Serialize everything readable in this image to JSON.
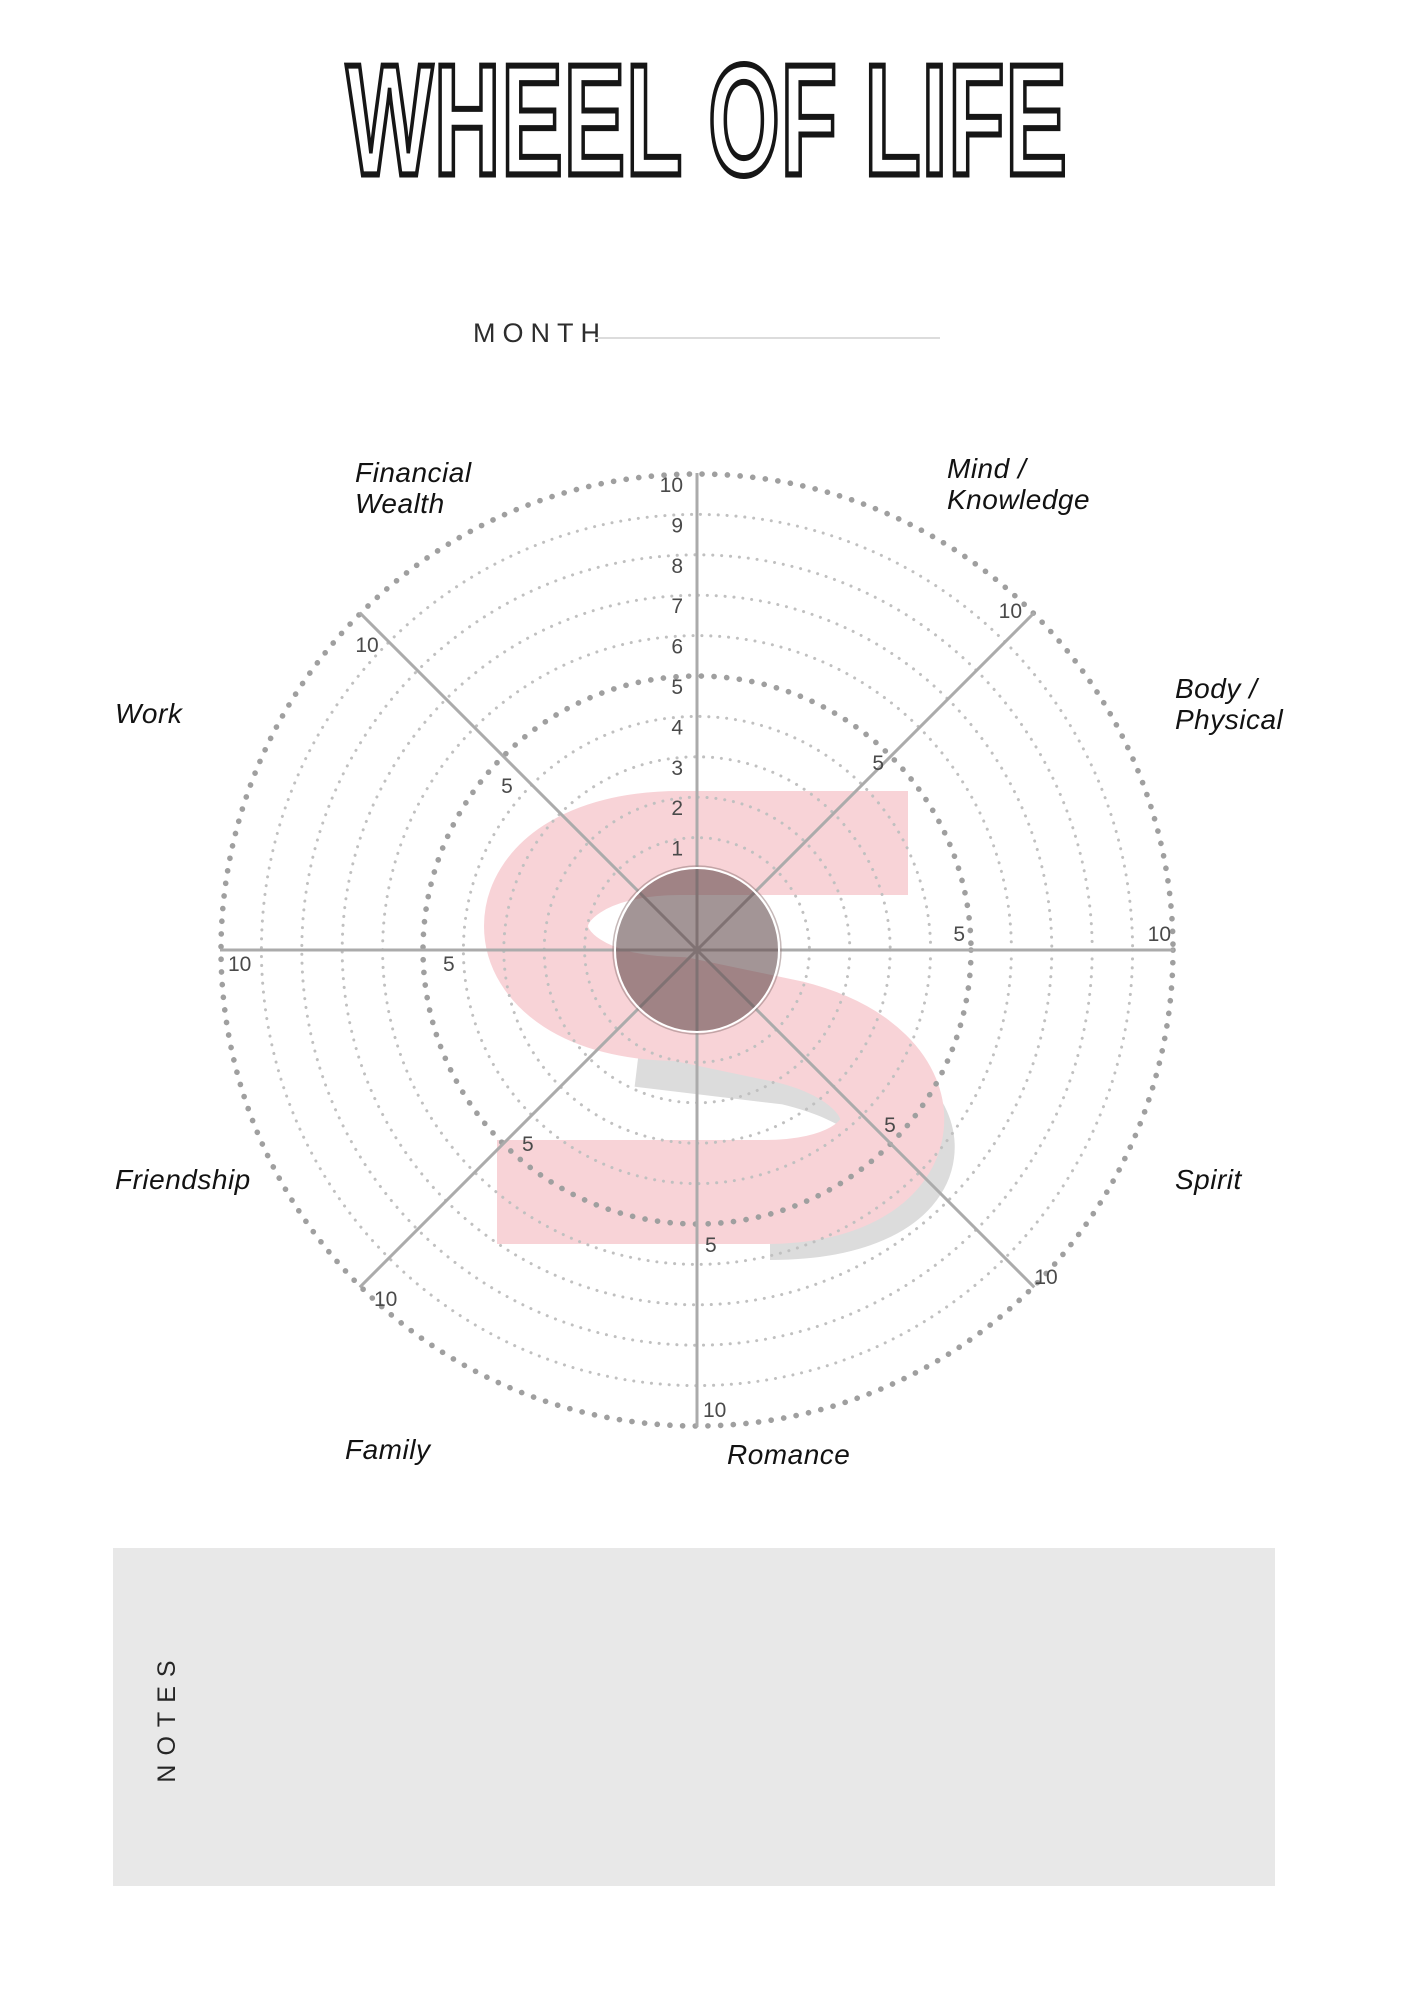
{
  "page_title": "WHEEL OF LIFE",
  "month": {
    "label": "MONTH",
    "value": ""
  },
  "notes": {
    "label": "NOTES",
    "value": ""
  },
  "watermark": {
    "letter": "S",
    "pink": "#f8d3d7",
    "shadow": "#dcdcdc"
  },
  "colors": {
    "ring_dot": "#c0c0c0",
    "ring_dot_bold": "#9f9f9f",
    "spoke": "#ababab",
    "tick_text": "#4a4a4a",
    "center_circle": "rgba(96,72,74,0.58)",
    "notes_bg": "#e8e8e8",
    "month_line": "#dcdcdc",
    "title_outline": "#161616"
  },
  "chart_data": {
    "type": "radar",
    "title": "Wheel of Life blank self-rating wheel",
    "scale_min": 1,
    "scale_max": 10,
    "rings": [
      1,
      2,
      3,
      4,
      5,
      6,
      7,
      8,
      9,
      10
    ],
    "bold_rings": [
      5,
      10
    ],
    "grid": "dotted-rings",
    "legend": false,
    "series": [],
    "axes": [
      {
        "id": "N",
        "angle_deg": 90,
        "ticks": [
          "1",
          "2",
          "3",
          "4",
          "5",
          "6",
          "7",
          "8",
          "9",
          "10"
        ]
      },
      {
        "id": "NE",
        "angle_deg": 45,
        "ticks": [
          "5",
          "10"
        ]
      },
      {
        "id": "E",
        "angle_deg": 0,
        "ticks": [
          "5",
          "10"
        ]
      },
      {
        "id": "SE",
        "angle_deg": -45,
        "ticks": [
          "5",
          "10"
        ]
      },
      {
        "id": "S",
        "angle_deg": -90,
        "ticks": [
          "5",
          "10"
        ]
      },
      {
        "id": "SW",
        "angle_deg": -135,
        "ticks": [
          "5",
          "10"
        ]
      },
      {
        "id": "W",
        "angle_deg": 180,
        "ticks": [
          "5",
          "10"
        ]
      },
      {
        "id": "NW",
        "angle_deg": 135,
        "ticks": [
          "5",
          "10"
        ]
      }
    ],
    "categories": [
      {
        "name": "Financial Wealth",
        "lines": [
          "Financial",
          "Wealth"
        ]
      },
      {
        "name": "Mind / Knowledge",
        "lines": [
          "Mind /",
          "Knowledge"
        ]
      },
      {
        "name": "Body / Physical",
        "lines": [
          "Body /",
          "Physical"
        ]
      },
      {
        "name": "Spirit",
        "lines": [
          "Spirit"
        ]
      },
      {
        "name": "Romance",
        "lines": [
          "Romance"
        ]
      },
      {
        "name": "Family",
        "lines": [
          "Family"
        ]
      },
      {
        "name": "Friendship",
        "lines": [
          "Friendship"
        ]
      },
      {
        "name": "Work",
        "lines": [
          "Work"
        ]
      }
    ]
  }
}
